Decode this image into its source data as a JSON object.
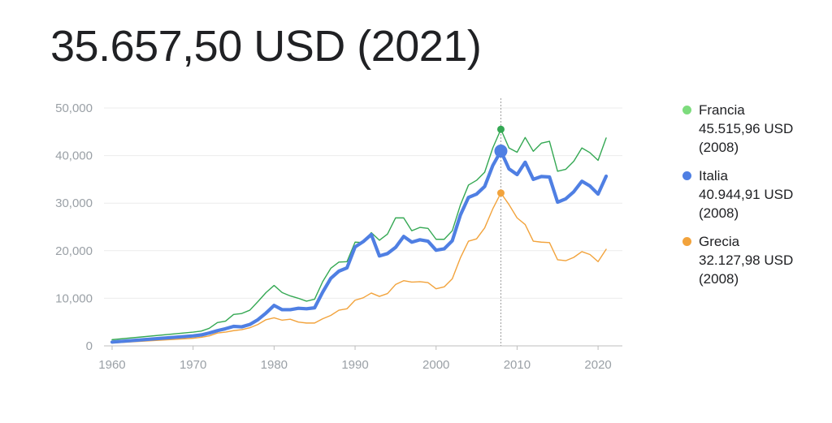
{
  "headline": "35.657,50 USD (2021)",
  "chart_data": {
    "type": "line",
    "title": "35.657,50 USD (2021)",
    "xlabel": "",
    "ylabel": "",
    "xlim": [
      1959,
      2023
    ],
    "ylim": [
      0,
      50000
    ],
    "y_ticks": [
      "0",
      "10,000",
      "20,000",
      "30,000",
      "40,000",
      "50,000"
    ],
    "y_tick_values": [
      0,
      10000,
      20000,
      30000,
      40000,
      50000
    ],
    "x_ticks": [
      "1960",
      "1970",
      "1980",
      "1990",
      "2000",
      "2010",
      "2020"
    ],
    "x_tick_values": [
      1960,
      1970,
      1980,
      1990,
      2000,
      2010,
      2020
    ],
    "grid": true,
    "highlight_year": 2008,
    "legend_position": "right",
    "series": [
      {
        "name": "Francia",
        "color": "#34a853",
        "legend_color": "#7ddc7d",
        "highlight_value": "45.515,96 USD",
        "highlight_year_label": "(2008)",
        "points": [
          [
            1960,
            1300
          ],
          [
            1970,
            2900
          ],
          [
            1971,
            3100
          ],
          [
            1972,
            3700
          ],
          [
            1973,
            4900
          ],
          [
            1974,
            5200
          ],
          [
            1975,
            6600
          ],
          [
            1976,
            6800
          ],
          [
            1977,
            7500
          ],
          [
            1978,
            9300
          ],
          [
            1979,
            11200
          ],
          [
            1980,
            12700
          ],
          [
            1981,
            11200
          ],
          [
            1982,
            10500
          ],
          [
            1983,
            10000
          ],
          [
            1984,
            9400
          ],
          [
            1985,
            9800
          ],
          [
            1986,
            13500
          ],
          [
            1987,
            16300
          ],
          [
            1988,
            17600
          ],
          [
            1989,
            17700
          ],
          [
            1990,
            21800
          ],
          [
            1991,
            21700
          ],
          [
            1992,
            23800
          ],
          [
            1993,
            22200
          ],
          [
            1994,
            23500
          ],
          [
            1995,
            26900
          ],
          [
            1996,
            26900
          ],
          [
            1997,
            24200
          ],
          [
            1998,
            24900
          ],
          [
            1999,
            24700
          ],
          [
            2000,
            22400
          ],
          [
            2001,
            22400
          ],
          [
            2002,
            24200
          ],
          [
            2003,
            29600
          ],
          [
            2004,
            33800
          ],
          [
            2005,
            34800
          ],
          [
            2006,
            36500
          ],
          [
            2007,
            41600
          ],
          [
            2008,
            45516
          ],
          [
            2009,
            41600
          ],
          [
            2010,
            40700
          ],
          [
            2011,
            43800
          ],
          [
            2012,
            40900
          ],
          [
            2013,
            42600
          ],
          [
            2014,
            43000
          ],
          [
            2015,
            36700
          ],
          [
            2016,
            37100
          ],
          [
            2017,
            38800
          ],
          [
            2018,
            41600
          ],
          [
            2019,
            40600
          ],
          [
            2020,
            39000
          ],
          [
            2021,
            43700
          ]
        ]
      },
      {
        "name": "Italia",
        "color": "#4f7fe3",
        "legend_color": "#4f7fe3",
        "highlight_value": "40.944,91 USD",
        "highlight_year_label": "(2008)",
        "points": [
          [
            1960,
            800
          ],
          [
            1970,
            2100
          ],
          [
            1971,
            2300
          ],
          [
            1972,
            2700
          ],
          [
            1973,
            3200
          ],
          [
            1974,
            3600
          ],
          [
            1975,
            4100
          ],
          [
            1976,
            4000
          ],
          [
            1977,
            4500
          ],
          [
            1978,
            5500
          ],
          [
            1979,
            6900
          ],
          [
            1980,
            8500
          ],
          [
            1981,
            7600
          ],
          [
            1982,
            7600
          ],
          [
            1983,
            7900
          ],
          [
            1984,
            7800
          ],
          [
            1985,
            8000
          ],
          [
            1986,
            11300
          ],
          [
            1987,
            14200
          ],
          [
            1988,
            15700
          ],
          [
            1989,
            16400
          ],
          [
            1990,
            20800
          ],
          [
            1991,
            21900
          ],
          [
            1992,
            23400
          ],
          [
            1993,
            18900
          ],
          [
            1994,
            19400
          ],
          [
            1995,
            20700
          ],
          [
            1996,
            23000
          ],
          [
            1997,
            21800
          ],
          [
            1998,
            22300
          ],
          [
            1999,
            22000
          ],
          [
            2000,
            20100
          ],
          [
            2001,
            20400
          ],
          [
            2002,
            22100
          ],
          [
            2003,
            27500
          ],
          [
            2004,
            31200
          ],
          [
            2005,
            31900
          ],
          [
            2006,
            33500
          ],
          [
            2007,
            37900
          ],
          [
            2008,
            40945
          ],
          [
            2009,
            37200
          ],
          [
            2010,
            36000
          ],
          [
            2011,
            38600
          ],
          [
            2012,
            35000
          ],
          [
            2013,
            35600
          ],
          [
            2014,
            35500
          ],
          [
            2015,
            30200
          ],
          [
            2016,
            30900
          ],
          [
            2017,
            32400
          ],
          [
            2018,
            34600
          ],
          [
            2019,
            33600
          ],
          [
            2020,
            31900
          ],
          [
            2021,
            35658
          ]
        ]
      },
      {
        "name": "Grecia",
        "color": "#f2a33c",
        "legend_color": "#f2a33c",
        "highlight_value": "32.127,98 USD",
        "highlight_year_label": "(2008)",
        "points": [
          [
            1960,
            600
          ],
          [
            1970,
            1600
          ],
          [
            1971,
            1800
          ],
          [
            1972,
            2100
          ],
          [
            1973,
            2700
          ],
          [
            1974,
            2900
          ],
          [
            1975,
            3200
          ],
          [
            1976,
            3400
          ],
          [
            1977,
            3800
          ],
          [
            1978,
            4500
          ],
          [
            1979,
            5500
          ],
          [
            1980,
            5900
          ],
          [
            1981,
            5400
          ],
          [
            1982,
            5600
          ],
          [
            1983,
            5000
          ],
          [
            1984,
            4800
          ],
          [
            1985,
            4800
          ],
          [
            1986,
            5700
          ],
          [
            1987,
            6400
          ],
          [
            1988,
            7500
          ],
          [
            1989,
            7800
          ],
          [
            1990,
            9600
          ],
          [
            1991,
            10100
          ],
          [
            1992,
            11100
          ],
          [
            1993,
            10400
          ],
          [
            1994,
            11000
          ],
          [
            1995,
            12900
          ],
          [
            1996,
            13700
          ],
          [
            1997,
            13400
          ],
          [
            1998,
            13500
          ],
          [
            1999,
            13300
          ],
          [
            2000,
            12000
          ],
          [
            2001,
            12400
          ],
          [
            2002,
            14100
          ],
          [
            2003,
            18500
          ],
          [
            2004,
            22000
          ],
          [
            2005,
            22500
          ],
          [
            2006,
            24800
          ],
          [
            2007,
            28800
          ],
          [
            2008,
            32128
          ],
          [
            2009,
            29700
          ],
          [
            2010,
            26900
          ],
          [
            2011,
            25500
          ],
          [
            2012,
            22000
          ],
          [
            2013,
            21800
          ],
          [
            2014,
            21700
          ],
          [
            2015,
            18100
          ],
          [
            2016,
            17900
          ],
          [
            2017,
            18600
          ],
          [
            2018,
            19800
          ],
          [
            2019,
            19200
          ],
          [
            2020,
            17700
          ],
          [
            2021,
            20300
          ]
        ]
      }
    ]
  }
}
